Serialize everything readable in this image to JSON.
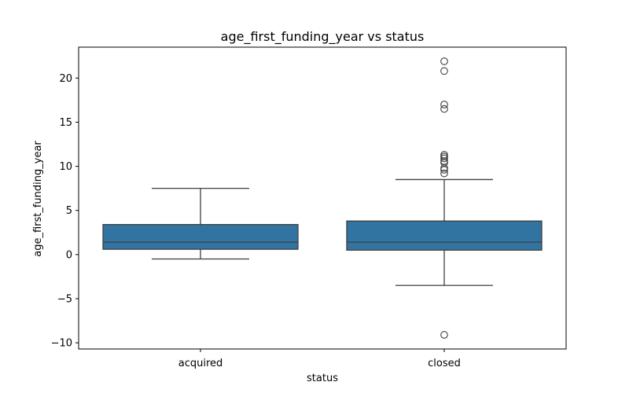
{
  "chart_data": {
    "type": "box",
    "title": "age_first_funding_year vs status",
    "xlabel": "status",
    "ylabel": "age_first_funding_year",
    "categories": [
      "acquired",
      "closed"
    ],
    "ylim": [
      -10.7,
      23.5
    ],
    "yticks": [
      -10,
      -5,
      0,
      5,
      10,
      15,
      20
    ],
    "ytick_labels": [
      "−10",
      "−5",
      "0",
      "5",
      "10",
      "15",
      "20"
    ],
    "grid": false,
    "legend": "none",
    "box_color": "#3274a1",
    "line_color": "#3f3f3f",
    "boxes": [
      {
        "category": "acquired",
        "whisker_low": -0.5,
        "q1": 0.6,
        "median": 1.4,
        "q3": 3.4,
        "whisker_high": 7.5,
        "outliers": []
      },
      {
        "category": "closed",
        "whisker_low": -3.5,
        "q1": 0.5,
        "median": 1.4,
        "q3": 3.8,
        "whisker_high": 8.5,
        "outliers": [
          -9.1,
          9.2,
          9.6,
          9.8,
          10.4,
          10.6,
          10.9,
          11.1,
          11.3,
          16.5,
          17.0,
          20.8,
          21.9
        ]
      }
    ]
  }
}
